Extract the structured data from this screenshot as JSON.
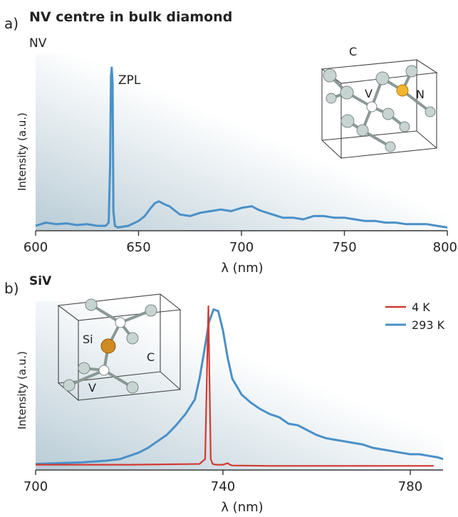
{
  "chart_data": [
    {
      "type": "line",
      "panel_letter": "a)",
      "title": "NV centre in bulk diamond",
      "subtitle": "NV",
      "xlabel": "λ (nm)",
      "ylabel": "Intensity (a.u.)",
      "xlim": [
        600,
        800
      ],
      "ylim": [
        0,
        1
      ],
      "xticks": [
        600,
        650,
        700,
        750,
        800
      ],
      "grid": false,
      "annotations": [
        {
          "text": "ZPL",
          "x": 637,
          "y": 0.95
        }
      ],
      "series": [
        {
          "color": "#4a90c8",
          "x": [
            600,
            605,
            610,
            615,
            620,
            625,
            630,
            634,
            635.5,
            636.2,
            636.6,
            637,
            637.4,
            637.8,
            638.5,
            640,
            645,
            650,
            653,
            656,
            658,
            660,
            663,
            665,
            668,
            670,
            675,
            680,
            685,
            690,
            695,
            700,
            705,
            708,
            710,
            715,
            720,
            725,
            730,
            735,
            740,
            745,
            750,
            755,
            760,
            765,
            770,
            775,
            780,
            785,
            790,
            795,
            800
          ],
          "values": [
            0.03,
            0.05,
            0.04,
            0.045,
            0.035,
            0.04,
            0.03,
            0.03,
            0.05,
            0.4,
            0.95,
            1.0,
            0.9,
            0.12,
            0.03,
            0.02,
            0.03,
            0.06,
            0.09,
            0.14,
            0.17,
            0.18,
            0.16,
            0.15,
            0.12,
            0.1,
            0.09,
            0.11,
            0.12,
            0.13,
            0.12,
            0.14,
            0.15,
            0.13,
            0.12,
            0.1,
            0.08,
            0.08,
            0.07,
            0.09,
            0.09,
            0.08,
            0.08,
            0.07,
            0.06,
            0.06,
            0.05,
            0.05,
            0.04,
            0.04,
            0.04,
            0.03,
            0.02
          ]
        }
      ],
      "inset": {
        "labels": [
          "C",
          "V",
          "N"
        ],
        "colors": {
          "carbon": "#c8d4d2",
          "vacancy": "#ffffff",
          "dopant": "#f2b530"
        }
      }
    },
    {
      "type": "line",
      "panel_letter": "b)",
      "title": "SiV",
      "xlabel": "λ (nm)",
      "ylabel": "Intensity (a.u.)",
      "xlim": [
        700,
        787
      ],
      "ylim": [
        0,
        1
      ],
      "xticks": [
        700,
        740,
        780
      ],
      "grid": false,
      "legend": {
        "placement": "top-right"
      },
      "series": [
        {
          "name": "4 K",
          "color": "#d13a32",
          "x": [
            700,
            720,
            730,
            735,
            736.2,
            736.6,
            736.9,
            737.1,
            737.4,
            737.8,
            738.5,
            740,
            741,
            741.5,
            742,
            750,
            760,
            770,
            780,
            785
          ],
          "values": [
            0.015,
            0.015,
            0.018,
            0.02,
            0.05,
            0.6,
            1.0,
            0.6,
            0.05,
            0.02,
            0.015,
            0.015,
            0.025,
            0.015,
            0.01,
            0.008,
            0.008,
            0.008,
            0.008,
            0.008
          ]
        },
        {
          "name": "293 K",
          "color": "#4a90c8",
          "x": [
            700,
            705,
            710,
            715,
            718,
            720,
            722,
            724,
            726,
            728,
            730,
            732,
            734,
            735,
            736,
            737,
            738,
            739,
            740,
            741,
            742,
            743,
            744,
            746,
            748,
            750,
            752,
            754,
            756,
            758,
            760,
            762,
            764,
            766,
            768,
            770,
            772,
            774,
            776,
            778,
            780,
            782,
            784,
            786,
            787
          ],
          "values": [
            0.02,
            0.025,
            0.03,
            0.04,
            0.05,
            0.07,
            0.09,
            0.12,
            0.16,
            0.2,
            0.26,
            0.33,
            0.42,
            0.55,
            0.72,
            0.9,
            0.98,
            0.97,
            0.85,
            0.68,
            0.55,
            0.5,
            0.45,
            0.4,
            0.36,
            0.33,
            0.31,
            0.27,
            0.26,
            0.23,
            0.2,
            0.18,
            0.17,
            0.16,
            0.15,
            0.14,
            0.12,
            0.11,
            0.1,
            0.09,
            0.08,
            0.08,
            0.07,
            0.06,
            0.05
          ]
        }
      ],
      "inset": {
        "labels": [
          "Si",
          "C",
          "V"
        ],
        "colors": {
          "carbon": "#c8d4d2",
          "vacancy": "#ffffff",
          "dopant": "#d08a22"
        }
      }
    }
  ]
}
